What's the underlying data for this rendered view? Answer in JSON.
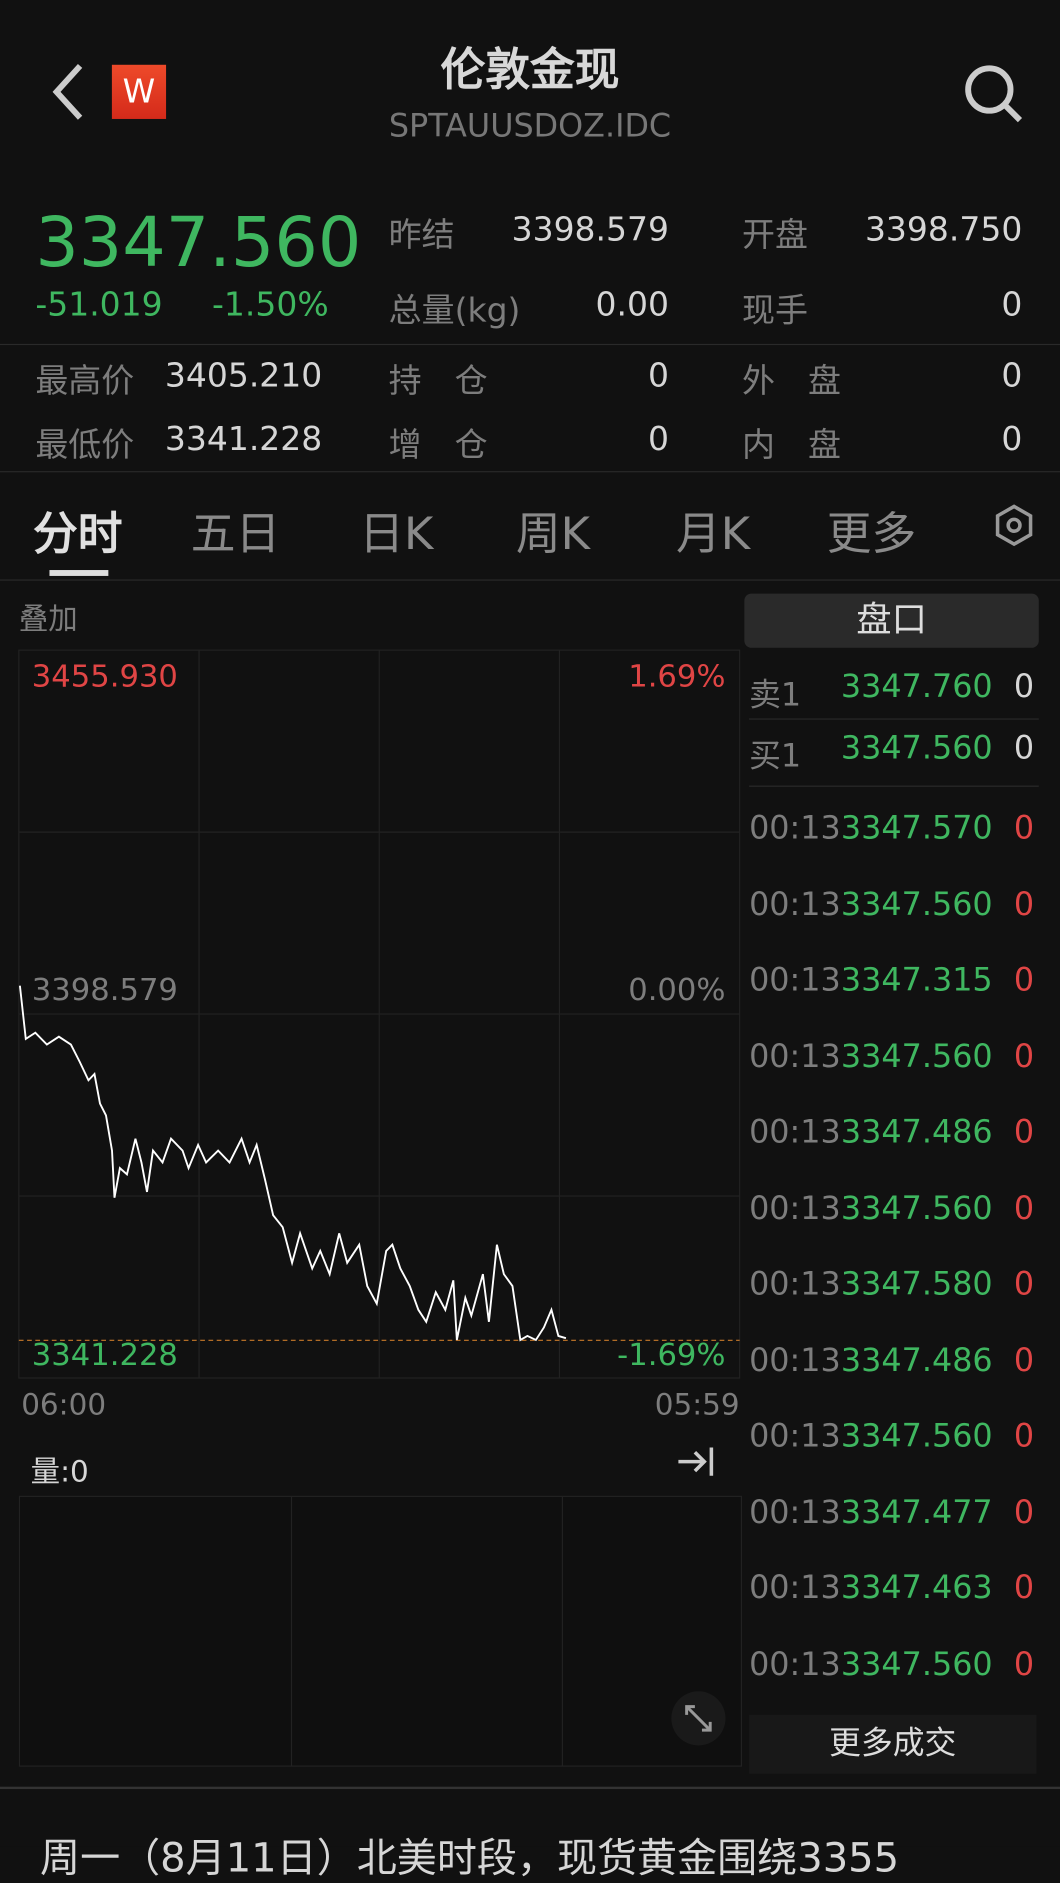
{
  "header": {
    "title": "伦敦金现",
    "subtitle": "SPTAUUSDOZ.IDC",
    "logo_letter": "W",
    "back_icon": "chevron-left-icon",
    "search_icon": "search-icon"
  },
  "quote": {
    "price": "3347.560",
    "change": "-51.019",
    "change_pct": "-1.50%",
    "stats": [
      {
        "label": "昨结",
        "value": "3398.579"
      },
      {
        "label": "开盘",
        "value": "3398.750"
      },
      {
        "label": "总量(kg)",
        "value": "0.00"
      },
      {
        "label": "现手",
        "value": "0"
      },
      {
        "label": "最高价",
        "value": "3405.210"
      },
      {
        "label": "持　仓",
        "value": "0"
      },
      {
        "label": "外　盘",
        "value": "0"
      },
      {
        "label": "最低价",
        "value": "3341.228"
      },
      {
        "label": "增　仓",
        "value": "0"
      },
      {
        "label": "内　盘",
        "value": "0"
      }
    ]
  },
  "tabs": [
    "分时",
    "五日",
    "日K",
    "周K",
    "月K",
    "更多"
  ],
  "active_tab": "分时",
  "overlay_label": "叠加",
  "chart_data": {
    "type": "line",
    "max_label": "3455.930",
    "max_pct": "1.69%",
    "ref_label": "3398.579",
    "ref_pct": "0.00%",
    "min_label": "3341.228",
    "min_pct": "-1.69%",
    "x_start": "06:00",
    "x_end": "05:59",
    "ylim": [
      3341.228,
      3455.93
    ],
    "x": [
      "06:02",
      "06:14",
      "06:33",
      "06:56",
      "07:20",
      "07:44",
      "08:02",
      "08:19",
      "08:31",
      "08:42",
      "08:54",
      "09:06",
      "09:11",
      "09:22",
      "09:36",
      "09:53",
      "10:05",
      "10:16",
      "10:28",
      "10:47",
      "11:04",
      "11:27",
      "11:39",
      "11:58",
      "12:14",
      "12:38",
      "13:01",
      "13:25",
      "13:41",
      "13:55",
      "14:12",
      "14:28",
      "14:47",
      "15:06",
      "15:22",
      "15:46",
      "16:02",
      "16:21",
      "16:40",
      "16:56",
      "17:20",
      "17:36",
      "17:55",
      "18:14",
      "18:26",
      "18:42",
      "19:01",
      "19:18",
      "19:34",
      "19:53",
      "20:12",
      "20:28",
      "20:35",
      "20:52",
      "21:04",
      "21:27",
      "21:39",
      "21:55",
      "22:09",
      "22:26",
      "22:42",
      "22:56",
      "23:13",
      "23:29",
      "23:44",
      "23:58",
      "00:13"
    ],
    "values": [
      3403.8,
      3394.4,
      3395.5,
      3393.4,
      3394.8,
      3393.4,
      3390.3,
      3387.1,
      3388.2,
      3383.0,
      3380.9,
      3374.7,
      3366.4,
      3371.6,
      3370.5,
      3376.8,
      3372.6,
      3367.4,
      3374.7,
      3372.6,
      3376.8,
      3374.7,
      3371.6,
      3375.7,
      3372.6,
      3374.7,
      3372.6,
      3376.8,
      3372.6,
      3375.7,
      3369.5,
      3363.3,
      3361.2,
      3354.9,
      3360.1,
      3353.9,
      3357.0,
      3352.9,
      3360.1,
      3354.9,
      3358.1,
      3350.8,
      3347.7,
      3357.0,
      3358.1,
      3353.9,
      3350.8,
      3346.6,
      3344.5,
      3349.7,
      3346.6,
      3351.8,
      3341.3,
      3348.7,
      3345.6,
      3352.9,
      3344.5,
      3358.1,
      3352.9,
      3350.8,
      3341.3,
      3342.0,
      3341.3,
      3343.5,
      3346.6,
      3342.0,
      3341.6
    ],
    "line_color": "#ffffff",
    "min_line_color": "#c8792a"
  },
  "volume": {
    "label": "量:0"
  },
  "orderbook": {
    "title": "盘口",
    "asks": [
      {
        "label": "卖1",
        "price": "3347.760",
        "qty": "0"
      }
    ],
    "bids": [
      {
        "label": "买1",
        "price": "3347.560",
        "qty": "0"
      }
    ],
    "trades": [
      {
        "time": "00:13",
        "price": "3347.570",
        "qty": "0"
      },
      {
        "time": "00:13",
        "price": "3347.560",
        "qty": "0"
      },
      {
        "time": "00:13",
        "price": "3347.315",
        "qty": "0"
      },
      {
        "time": "00:13",
        "price": "3347.560",
        "qty": "0"
      },
      {
        "time": "00:13",
        "price": "3347.486",
        "qty": "0"
      },
      {
        "time": "00:13",
        "price": "3347.560",
        "qty": "0"
      },
      {
        "time": "00:13",
        "price": "3347.580",
        "qty": "0"
      },
      {
        "time": "00:13",
        "price": "3347.486",
        "qty": "0"
      },
      {
        "time": "00:13",
        "price": "3347.560",
        "qty": "0"
      },
      {
        "time": "00:13",
        "price": "3347.477",
        "qty": "0"
      },
      {
        "time": "00:13",
        "price": "3347.463",
        "qty": "0"
      },
      {
        "time": "00:13",
        "price": "3347.560",
        "qty": "0"
      }
    ],
    "more_label": "更多成交"
  },
  "news_snippet": "周一（8月11日）北美时段，现货黄金围绕3355",
  "colors": {
    "up": "#e04545",
    "down": "#3fb760",
    "background": "#111111"
  }
}
